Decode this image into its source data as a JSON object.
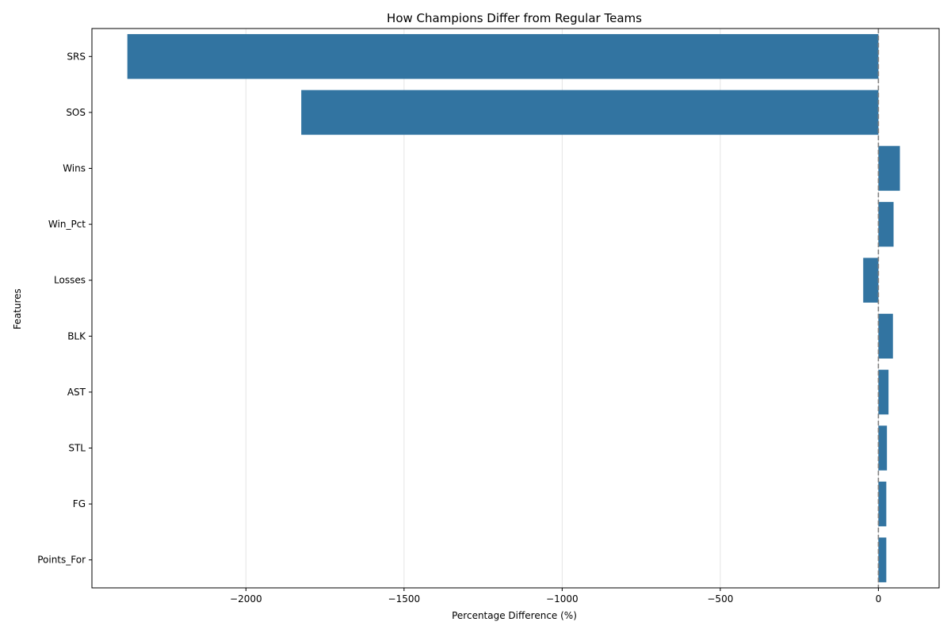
{
  "chart_data": {
    "type": "bar",
    "orientation": "horizontal",
    "title": "How Champions Differ from Regular Teams",
    "xlabel": "Percentage Difference (%)",
    "ylabel": "Features",
    "categories": [
      "SRS",
      "SOS",
      "Wins",
      "Win_Pct",
      "Losses",
      "BLK",
      "AST",
      "STL",
      "FG",
      "Points_For"
    ],
    "values": [
      -2375,
      -1825,
      68,
      48,
      -48,
      46,
      32,
      27,
      25,
      25
    ],
    "xlim": [
      -2487,
      192
    ],
    "x_ticks": [
      -2000,
      -1500,
      -1000,
      -500,
      0
    ],
    "x_tick_labels": [
      "−2000",
      "−1500",
      "−1000",
      "−500",
      "0"
    ],
    "grid": "vertical",
    "reference_line": {
      "x": 0,
      "style": "dashed"
    },
    "bar_color": "#3274a1",
    "grid_color": "#e5e5e5",
    "reference_line_color": "#808080"
  }
}
